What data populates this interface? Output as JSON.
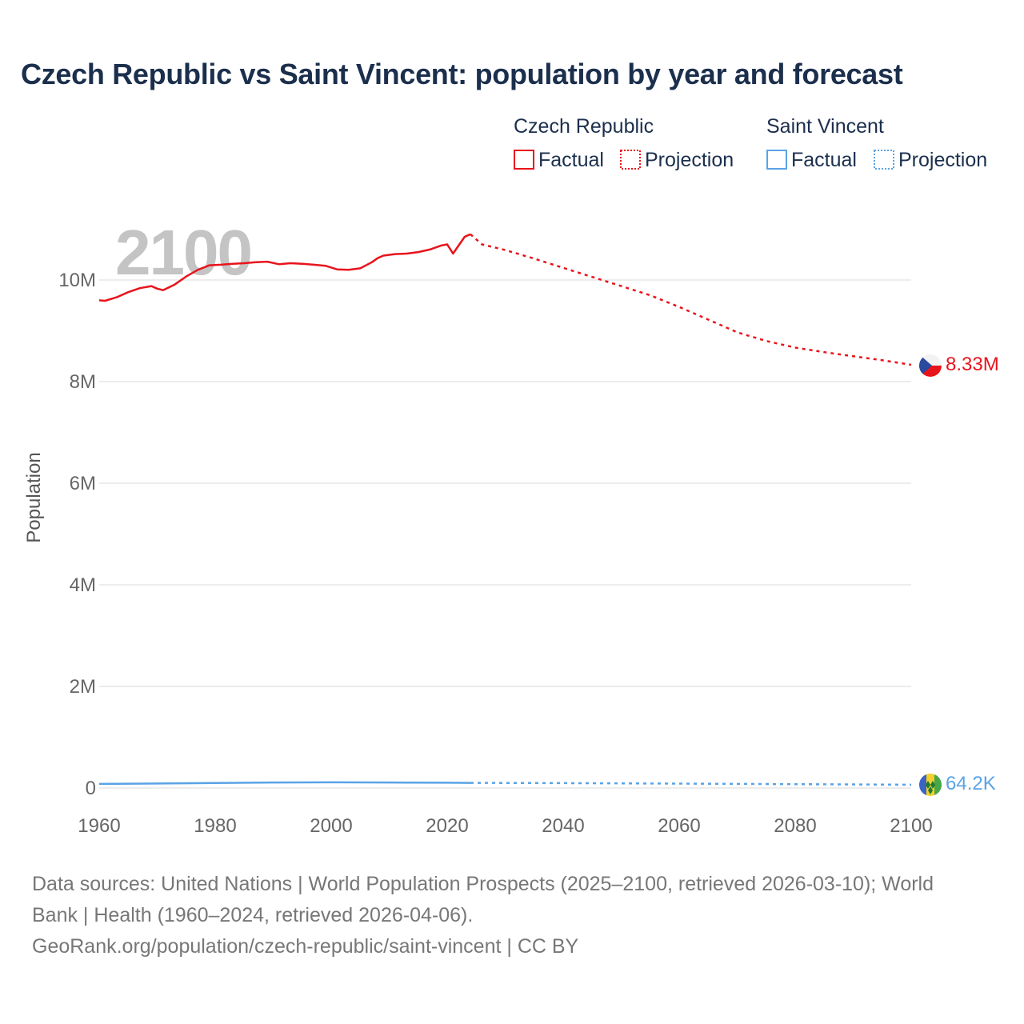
{
  "title": "Czech Republic vs Saint Vincent: population by year and forecast",
  "source_line1": "Data sources: United Nations | World Population Prospects (2025–2100, retrieved 2026-03-10); World",
  "source_line2": "Bank | Health (1960–2024, retrieved 2026-04-06).",
  "source_line3": "GeoRank.org/population/czech-republic/saint-vincent | CC BY",
  "legend": {
    "groups": [
      {
        "country": "Czech Republic",
        "factual": "Factual",
        "projection": "Projection",
        "color": "#e8141c"
      },
      {
        "country": "Saint Vincent",
        "factual": "Factual",
        "projection": "Projection",
        "color": "#5aa3e6"
      }
    ]
  },
  "chart_data": {
    "type": "line",
    "title": "Czech Republic vs Saint Vincent: population by year and forecast",
    "xlabel": "",
    "ylabel": "Population",
    "year_label": "2100",
    "xlim": [
      1960,
      2100
    ],
    "ylim": [
      0,
      11000000
    ],
    "x_ticks": [
      1960,
      1980,
      2000,
      2020,
      2040,
      2060,
      2080,
      2100
    ],
    "y_ticks": [
      0,
      2000000,
      4000000,
      6000000,
      8000000,
      10000000
    ],
    "y_tick_labels": [
      "0",
      "2M",
      "4M",
      "6M",
      "8M",
      "10M"
    ],
    "grid": true,
    "series": [
      {
        "name": "Czech Republic",
        "color": "#e8141c",
        "end_label": "8.33M",
        "factual": {
          "x": [
            1960,
            1961,
            1963,
            1965,
            1967,
            1969,
            1970,
            1971,
            1973,
            1975,
            1977,
            1979,
            1981,
            1983,
            1985,
            1987,
            1989,
            1991,
            1993,
            1995,
            1997,
            1999,
            2001,
            2003,
            2005,
            2007,
            2008,
            2009,
            2011,
            2013,
            2015,
            2017,
            2019,
            2020,
            2021,
            2023,
            2024
          ],
          "y": [
            9600000,
            9590000,
            9660000,
            9760000,
            9840000,
            9880000,
            9830000,
            9800000,
            9910000,
            10070000,
            10200000,
            10290000,
            10300000,
            10320000,
            10330000,
            10350000,
            10360000,
            10310000,
            10330000,
            10320000,
            10300000,
            10280000,
            10210000,
            10200000,
            10230000,
            10350000,
            10430000,
            10480000,
            10510000,
            10520000,
            10550000,
            10600000,
            10680000,
            10700000,
            10520000,
            10850000,
            10900000
          ]
        },
        "projection": {
          "x": [
            2024,
            2025,
            2026,
            2030,
            2035,
            2040,
            2045,
            2050,
            2055,
            2060,
            2065,
            2070,
            2075,
            2080,
            2085,
            2090,
            2095,
            2100
          ],
          "y": [
            10900000,
            10800000,
            10700000,
            10590000,
            10420000,
            10240000,
            10060000,
            9880000,
            9700000,
            9470000,
            9220000,
            8970000,
            8800000,
            8670000,
            8580000,
            8500000,
            8420000,
            8330000
          ]
        }
      },
      {
        "name": "Saint Vincent",
        "color": "#5aa3e6",
        "end_label": "64.2K",
        "factual": {
          "x": [
            1960,
            1970,
            1980,
            1990,
            2000,
            2010,
            2020,
            2024
          ],
          "y": [
            81000,
            88000,
            98000,
            108000,
            112000,
            109000,
            104000,
            101000
          ]
        },
        "projection": {
          "x": [
            2024,
            2040,
            2060,
            2080,
            2100
          ],
          "y": [
            101000,
            96000,
            87000,
            76000,
            64200
          ]
        }
      }
    ]
  }
}
